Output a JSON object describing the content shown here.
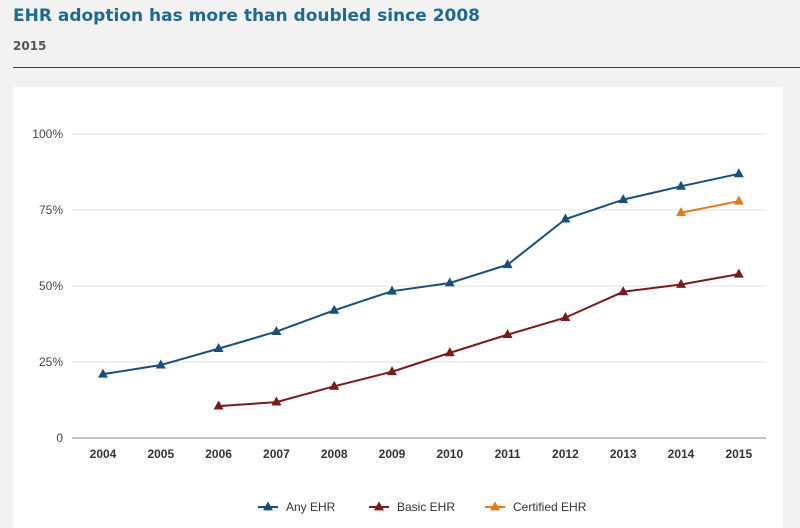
{
  "header": {
    "title": "EHR adoption has more than doubled since 2008",
    "subtitle": "2015"
  },
  "chart_data": {
    "type": "line",
    "title": "EHR adoption has more than doubled since 2008",
    "subtitle": "2015",
    "xlabel": "",
    "ylabel": "",
    "x": [
      "2004",
      "2005",
      "2006",
      "2007",
      "2008",
      "2009",
      "2010",
      "2011",
      "2012",
      "2013",
      "2014",
      "2015"
    ],
    "ylim": [
      0,
      100
    ],
    "yticks": [
      0,
      25,
      50,
      75,
      100
    ],
    "ytick_labels": [
      "0",
      "25%",
      "50%",
      "75%",
      "100%"
    ],
    "grid": true,
    "legend_position": "bottom",
    "series": [
      {
        "name": "Any EHR",
        "color": "#1b4f7a",
        "values": [
          21,
          24,
          29.4,
          35,
          42,
          48.3,
          51,
          57,
          72,
          78.4,
          82.8,
          86.9
        ]
      },
      {
        "name": "Basic EHR",
        "color": "#7b1a1a",
        "values": [
          null,
          null,
          10.5,
          11.8,
          17,
          21.8,
          28,
          34,
          39.6,
          48.1,
          50.5,
          53.9
        ]
      },
      {
        "name": "Certified EHR",
        "color": "#e07b1f",
        "values": [
          null,
          null,
          null,
          null,
          null,
          null,
          null,
          null,
          null,
          null,
          74.1,
          77.9
        ]
      }
    ]
  }
}
